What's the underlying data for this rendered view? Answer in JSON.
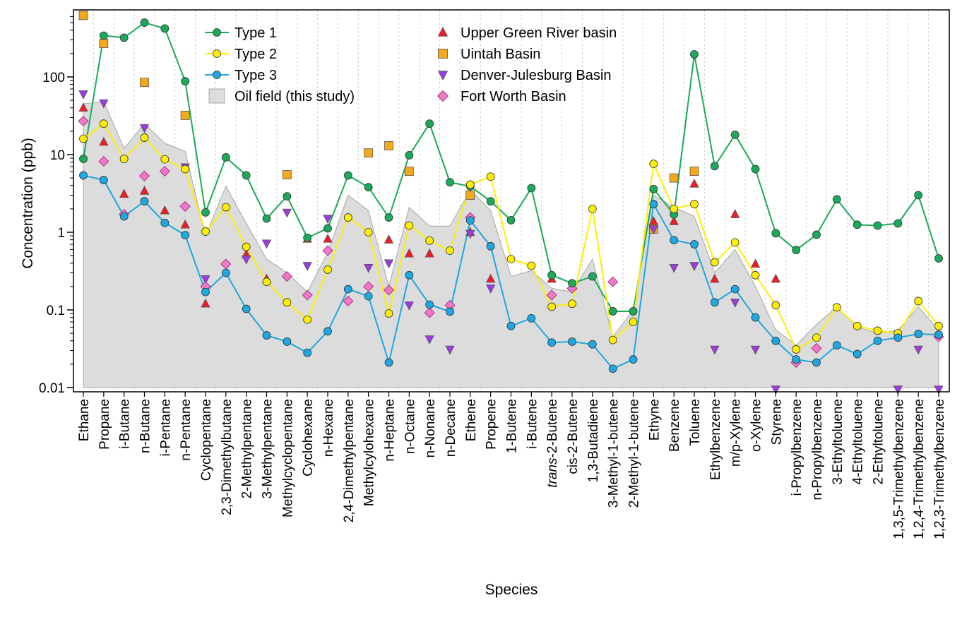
{
  "chart_data": {
    "type": "line",
    "title": "",
    "xlabel": "Species",
    "ylabel": "Concentration (ppb)",
    "yscale": "log",
    "ylim": [
      0.01,
      700
    ],
    "yticks": [
      0.01,
      0.1,
      1,
      10,
      100
    ],
    "ytick_labels": [
      "0.01",
      "0.1",
      "1",
      "10",
      "100"
    ],
    "grid": "vertical dashed minor",
    "legend_placement": "top-center",
    "categories": [
      "Ethane",
      "Propane",
      "i-Butane",
      "n-Butane",
      "i-Pentane",
      "n-Pentane",
      "Cyclopentane",
      "2,3-Dimethylbutane",
      "2-Methylpentane",
      "3-Methylpentane",
      "Methylcyclopentane",
      "Cyclohexane",
      "n-Hexane",
      "2,4-Dimethylpentane",
      "Methylcylohexane",
      "n-Heptane",
      "n-Octane",
      "n-Nonane",
      "n-Decane",
      "Ethene",
      "Propene",
      "1-Butene",
      "i-Butene",
      "trans-2-Butene",
      "cis-2-Butene",
      "1,3-Butadiene",
      "3-Methyl-1-butene",
      "2-Methyl-1-butene",
      "Ethyne",
      "Benzene",
      "Toluene",
      "Ethylbenzene",
      "m/p-Xylene",
      "o-Xylene",
      "Styrene",
      "i-Propylbenzene",
      "n-Propylbenzene",
      "3-Ethyltoluene",
      "4-Ethyltoluene",
      "2-Ethyltoluene",
      "1,3,5-Trimethylbenzene",
      "1,2,4-Trimethylbenzene",
      "1,2,3-Trimethylbenzene"
    ],
    "series": [
      {
        "name": "Type 1",
        "kind": "line",
        "color": "#1aaa5a",
        "values": [
          8.8,
          340,
          320,
          500,
          420,
          88,
          1.8,
          9.2,
          5.4,
          1.5,
          2.9,
          0.85,
          1.12,
          5.4,
          3.8,
          1.55,
          9.8,
          25,
          4.4,
          3.9,
          2.5,
          1.43,
          3.7,
          0.28,
          0.22,
          0.27,
          0.096,
          0.096,
          3.6,
          1.7,
          195,
          7.1,
          18,
          6.5,
          0.97,
          0.59,
          0.93,
          2.65,
          1.25,
          1.22,
          1.3,
          3.0,
          0.46
        ]
      },
      {
        "name": "Type 2",
        "kind": "line",
        "color": "#ffee00",
        "values": [
          16,
          25,
          8.8,
          16.5,
          8.7,
          6.5,
          1.02,
          2.1,
          0.65,
          0.23,
          0.125,
          0.075,
          0.33,
          1.55,
          1.0,
          0.09,
          1.22,
          0.78,
          0.58,
          4.1,
          5.2,
          0.45,
          0.37,
          0.11,
          0.12,
          2.0,
          0.041,
          0.07,
          7.6,
          2.0,
          2.3,
          0.41,
          0.74,
          0.28,
          0.115,
          0.031,
          0.044,
          0.108,
          0.062,
          0.054,
          0.05,
          0.13,
          0.062
        ]
      },
      {
        "name": "Type 3",
        "kind": "line",
        "color": "#1ea7e0",
        "values": [
          5.4,
          4.7,
          1.6,
          2.5,
          1.32,
          0.92,
          0.17,
          0.3,
          0.103,
          0.047,
          0.039,
          0.028,
          0.053,
          0.185,
          0.15,
          0.021,
          0.28,
          0.117,
          0.095,
          1.42,
          0.66,
          0.062,
          0.078,
          0.038,
          0.039,
          0.036,
          0.0175,
          0.023,
          2.3,
          0.79,
          0.7,
          0.125,
          0.185,
          0.08,
          0.04,
          0.023,
          0.021,
          0.035,
          0.027,
          0.04,
          0.044,
          0.049,
          0.048
        ]
      },
      {
        "name": "Oil field (this study)",
        "kind": "area",
        "color": "#dcdcdc",
        "values": [
          45,
          48,
          12,
          25,
          14,
          11,
          0.9,
          3.9,
          1.3,
          0.45,
          0.3,
          0.17,
          0.55,
          3.0,
          1.9,
          0.2,
          2.1,
          1.2,
          1.2,
          3.5,
          1.9,
          0.27,
          0.32,
          0.19,
          0.17,
          0.45,
          0.045,
          0.1,
          3.0,
          2.1,
          1.6,
          0.3,
          0.6,
          0.2,
          0.055,
          0.035,
          0.065,
          0.11,
          0.06,
          0.05,
          0.055,
          0.11,
          0.055
        ]
      },
      {
        "name": "Upper Green River basin",
        "kind": "marker",
        "marker": "triangle-up",
        "color": "#ee1c25",
        "values": [
          40,
          14.5,
          3.1,
          3.4,
          1.9,
          1.25,
          0.12,
          null,
          0.52,
          0.25,
          null,
          0.82,
          0.82,
          null,
          null,
          0.8,
          0.53,
          0.53,
          null,
          1.0,
          0.25,
          null,
          null,
          0.25,
          0.2,
          null,
          null,
          null,
          1.38,
          1.38,
          4.2,
          0.25,
          1.7,
          0.39,
          0.25,
          null,
          null,
          null,
          null,
          null,
          null,
          null,
          null
        ]
      },
      {
        "name": "Uintah Basin",
        "kind": "marker",
        "marker": "square",
        "color": "#f4a91a",
        "values": [
          620,
          270,
          null,
          85,
          null,
          32,
          null,
          null,
          null,
          null,
          5.5,
          null,
          null,
          null,
          10.5,
          13,
          6.1,
          null,
          null,
          3.0,
          null,
          null,
          null,
          null,
          null,
          null,
          null,
          null,
          1.1,
          5.0,
          6.1,
          null,
          null,
          null,
          null,
          null,
          null,
          null,
          null,
          null,
          null,
          null,
          null
        ]
      },
      {
        "name": "Denver-Julesburg Basin",
        "kind": "marker",
        "marker": "triangle-down",
        "color": "#9b3be0",
        "values": [
          60,
          46,
          null,
          22,
          null,
          6.9,
          0.25,
          null,
          0.45,
          0.72,
          1.8,
          0.37,
          1.5,
          null,
          0.35,
          0.4,
          0.115,
          0.042,
          0.031,
          0.96,
          0.19,
          null,
          null,
          null,
          null,
          null,
          null,
          null,
          1.1,
          0.35,
          0.37,
          0.031,
          0.125,
          0.031,
          0.0095,
          null,
          null,
          null,
          null,
          null,
          0.0095,
          0.031,
          0.0095
        ]
      },
      {
        "name": "Fort Worth Basin",
        "kind": "marker",
        "marker": "diamond",
        "color": "#f078c8",
        "values": [
          27,
          8.2,
          1.7,
          5.3,
          6.1,
          2.15,
          0.2,
          0.39,
          null,
          null,
          0.27,
          0.155,
          0.58,
          0.13,
          0.2,
          0.18,
          null,
          0.092,
          0.115,
          1.55,
          null,
          null,
          null,
          0.155,
          0.19,
          null,
          0.23,
          null,
          null,
          null,
          null,
          null,
          null,
          null,
          null,
          0.021,
          0.032,
          null,
          null,
          null,
          null,
          null,
          0.045
        ]
      }
    ]
  }
}
